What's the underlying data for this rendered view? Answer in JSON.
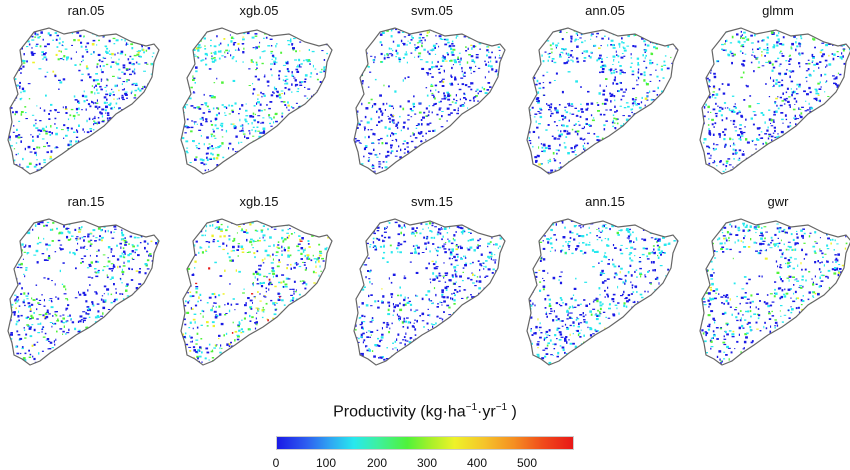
{
  "panels_row1": [
    "ran.05",
    "xgb.05",
    "svm.05",
    "ann.05",
    "glmm"
  ],
  "panels_row2": [
    "ran.15",
    "xgb.15",
    "svm.15",
    "ann.15",
    "gwr"
  ],
  "legend": {
    "title": "Productivity (kg·ha",
    "exp1": "−1",
    "mid": "·yr",
    "exp2": "−1",
    "close": " )",
    "ticks": [
      "0",
      "100",
      "200",
      "300",
      "400",
      "500"
    ],
    "range": [
      0,
      590
    ]
  },
  "colors": {
    "low": "#1a1ae6",
    "mid_low": "#27e8ee",
    "mid": "#4ff23a",
    "high": "#eef22a",
    "max": "#e81818",
    "outline": "#666666"
  }
}
